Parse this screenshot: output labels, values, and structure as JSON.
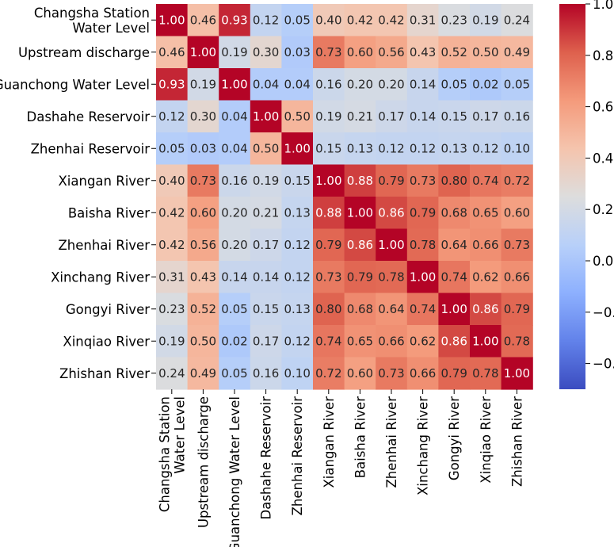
{
  "chart_data": {
    "type": "heatmap",
    "title": "",
    "xlabel": "",
    "ylabel": "",
    "row_labels": [
      [
        "Changsha Station",
        "Water Level"
      ],
      [
        "Upstream discharge"
      ],
      [
        "Guanchong Water Level"
      ],
      [
        "Dashahe Reservoir"
      ],
      [
        "Zhenhai Reservoir"
      ],
      [
        "Xiangan River"
      ],
      [
        "Baisha River"
      ],
      [
        "Zhenhai River"
      ],
      [
        "Xinchang River"
      ],
      [
        "Gongyi River"
      ],
      [
        "Xinqiao River"
      ],
      [
        "Zhishan River"
      ]
    ],
    "col_labels": [
      [
        "Changsha Station",
        "Water Level"
      ],
      [
        "Upstream discharge"
      ],
      [
        "Guanchong Water Level"
      ],
      [
        "Dashahe Reservoir"
      ],
      [
        "Zhenhai Reservoir"
      ],
      [
        "Xiangan River"
      ],
      [
        "Baisha River"
      ],
      [
        "Zhenhai River"
      ],
      [
        "Xinchang River"
      ],
      [
        "Gongyi River"
      ],
      [
        "Xinqiao River"
      ],
      [
        "Zhishan River"
      ]
    ],
    "values": [
      [
        1.0,
        0.46,
        0.93,
        0.12,
        0.05,
        0.4,
        0.42,
        0.42,
        0.31,
        0.23,
        0.19,
        0.24
      ],
      [
        0.46,
        1.0,
        0.19,
        0.3,
        0.03,
        0.73,
        0.6,
        0.56,
        0.43,
        0.52,
        0.5,
        0.49
      ],
      [
        0.93,
        0.19,
        1.0,
        0.04,
        0.04,
        0.16,
        0.2,
        0.2,
        0.14,
        0.05,
        0.02,
        0.05
      ],
      [
        0.12,
        0.3,
        0.04,
        1.0,
        0.5,
        0.19,
        0.21,
        0.17,
        0.14,
        0.15,
        0.17,
        0.16
      ],
      [
        0.05,
        0.03,
        0.04,
        0.5,
        1.0,
        0.15,
        0.13,
        0.12,
        0.12,
        0.13,
        0.12,
        0.1
      ],
      [
        0.4,
        0.73,
        0.16,
        0.19,
        0.15,
        1.0,
        0.88,
        0.79,
        0.73,
        0.8,
        0.74,
        0.72
      ],
      [
        0.42,
        0.6,
        0.2,
        0.21,
        0.13,
        0.88,
        1.0,
        0.86,
        0.79,
        0.68,
        0.65,
        0.6
      ],
      [
        0.42,
        0.56,
        0.2,
        0.17,
        0.12,
        0.79,
        0.86,
        1.0,
        0.78,
        0.64,
        0.66,
        0.73
      ],
      [
        0.31,
        0.43,
        0.14,
        0.14,
        0.12,
        0.73,
        0.79,
        0.78,
        1.0,
        0.74,
        0.62,
        0.66
      ],
      [
        0.23,
        0.52,
        0.05,
        0.15,
        0.13,
        0.8,
        0.68,
        0.64,
        0.74,
        1.0,
        0.86,
        0.79
      ],
      [
        0.19,
        0.5,
        0.02,
        0.17,
        0.12,
        0.74,
        0.65,
        0.66,
        0.62,
        0.86,
        1.0,
        0.78
      ],
      [
        0.24,
        0.49,
        0.05,
        0.16,
        0.1,
        0.72,
        0.6,
        0.73,
        0.66,
        0.79,
        0.78,
        1.0
      ]
    ],
    "value_format": "0.00",
    "colormap": "coolwarm",
    "vmin": -0.5,
    "vmax": 1.0,
    "colorbar_ticks": [
      {
        "value": 1.0,
        "label": "1.0"
      },
      {
        "value": 0.8,
        "label": "0.8"
      },
      {
        "value": 0.6,
        "label": "0.6"
      },
      {
        "value": 0.4,
        "label": "0.4"
      },
      {
        "value": 0.2,
        "label": "0.2"
      },
      {
        "value": 0.0,
        "label": "0.0"
      },
      {
        "value": -0.2,
        "label": "−0.2"
      },
      {
        "value": -0.4,
        "label": "−0.4"
      }
    ],
    "colors": {
      "text_light": "#ffffff",
      "text_dark": "#262626",
      "label": "#000000"
    }
  }
}
